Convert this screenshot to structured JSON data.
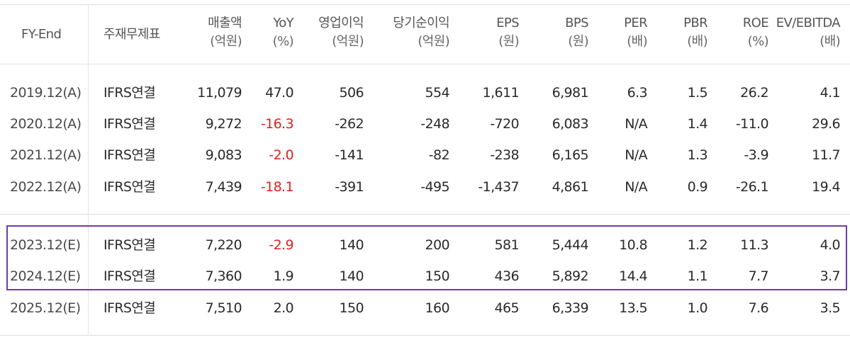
{
  "header": {
    "fy": "FY-End",
    "basis": "주재무제표",
    "cols": [
      {
        "key": "sales",
        "label": "매출액",
        "unit": "(억원)"
      },
      {
        "key": "yoy",
        "label": "YoY",
        "unit": "(%)"
      },
      {
        "key": "op",
        "label": "영업이익",
        "unit": "(억원)"
      },
      {
        "key": "net",
        "label": "당기순이익",
        "unit": "(억원)"
      },
      {
        "key": "eps",
        "label": "EPS",
        "unit": "(원)"
      },
      {
        "key": "bps",
        "label": "BPS",
        "unit": "(원)"
      },
      {
        "key": "per",
        "label": "PER",
        "unit": "(배)"
      },
      {
        "key": "pbr",
        "label": "PBR",
        "unit": "(배)"
      },
      {
        "key": "roe",
        "label": "ROE",
        "unit": "(%)"
      },
      {
        "key": "ev",
        "label": "EV/EBITDA",
        "unit": "(배)"
      }
    ]
  },
  "rows": [
    {
      "fy": "2019.12(A)",
      "basis": "IFRS연결",
      "sales": "11,079",
      "yoy": "47.0",
      "yoy_neg": false,
      "op": "506",
      "net": "554",
      "eps": "1,611",
      "bps": "6,981",
      "per": "6.3",
      "pbr": "1.5",
      "roe": "26.2",
      "ev": "4.1"
    },
    {
      "fy": "2020.12(A)",
      "basis": "IFRS연결",
      "sales": "9,272",
      "yoy": "-16.3",
      "yoy_neg": true,
      "op": "-262",
      "net": "-248",
      "eps": "-720",
      "bps": "6,083",
      "per": "N/A",
      "pbr": "1.4",
      "roe": "-11.0",
      "ev": "29.6"
    },
    {
      "fy": "2021.12(A)",
      "basis": "IFRS연결",
      "sales": "9,083",
      "yoy": "-2.0",
      "yoy_neg": true,
      "op": "-141",
      "net": "-82",
      "eps": "-238",
      "bps": "6,165",
      "per": "N/A",
      "pbr": "1.3",
      "roe": "-3.9",
      "ev": "11.7"
    },
    {
      "fy": "2022.12(A)",
      "basis": "IFRS연결",
      "sales": "7,439",
      "yoy": "-18.1",
      "yoy_neg": true,
      "op": "-391",
      "net": "-495",
      "eps": "-1,437",
      "bps": "4,861",
      "per": "N/A",
      "pbr": "0.9",
      "roe": "-26.1",
      "ev": "19.4"
    },
    {
      "fy": "2023.12(E)",
      "basis": "IFRS연결",
      "sales": "7,220",
      "yoy": "-2.9",
      "yoy_neg": true,
      "op": "140",
      "net": "200",
      "eps": "581",
      "bps": "5,444",
      "per": "10.8",
      "pbr": "1.2",
      "roe": "11.3",
      "ev": "4.0"
    },
    {
      "fy": "2024.12(E)",
      "basis": "IFRS연결",
      "sales": "7,360",
      "yoy": "1.9",
      "yoy_neg": false,
      "op": "140",
      "net": "150",
      "eps": "436",
      "bps": "5,892",
      "per": "14.4",
      "pbr": "1.1",
      "roe": "7.7",
      "ev": "3.7"
    },
    {
      "fy": "2025.12(E)",
      "basis": "IFRS연결",
      "sales": "7,510",
      "yoy": "2.0",
      "yoy_neg": false,
      "op": "150",
      "net": "160",
      "eps": "465",
      "bps": "6,339",
      "per": "13.5",
      "pbr": "1.0",
      "roe": "7.6",
      "ev": "3.5"
    }
  ],
  "colors": {
    "negative_yoy": "#e02020",
    "highlight_border": "#6d3ea8",
    "grid": "#dedede"
  }
}
